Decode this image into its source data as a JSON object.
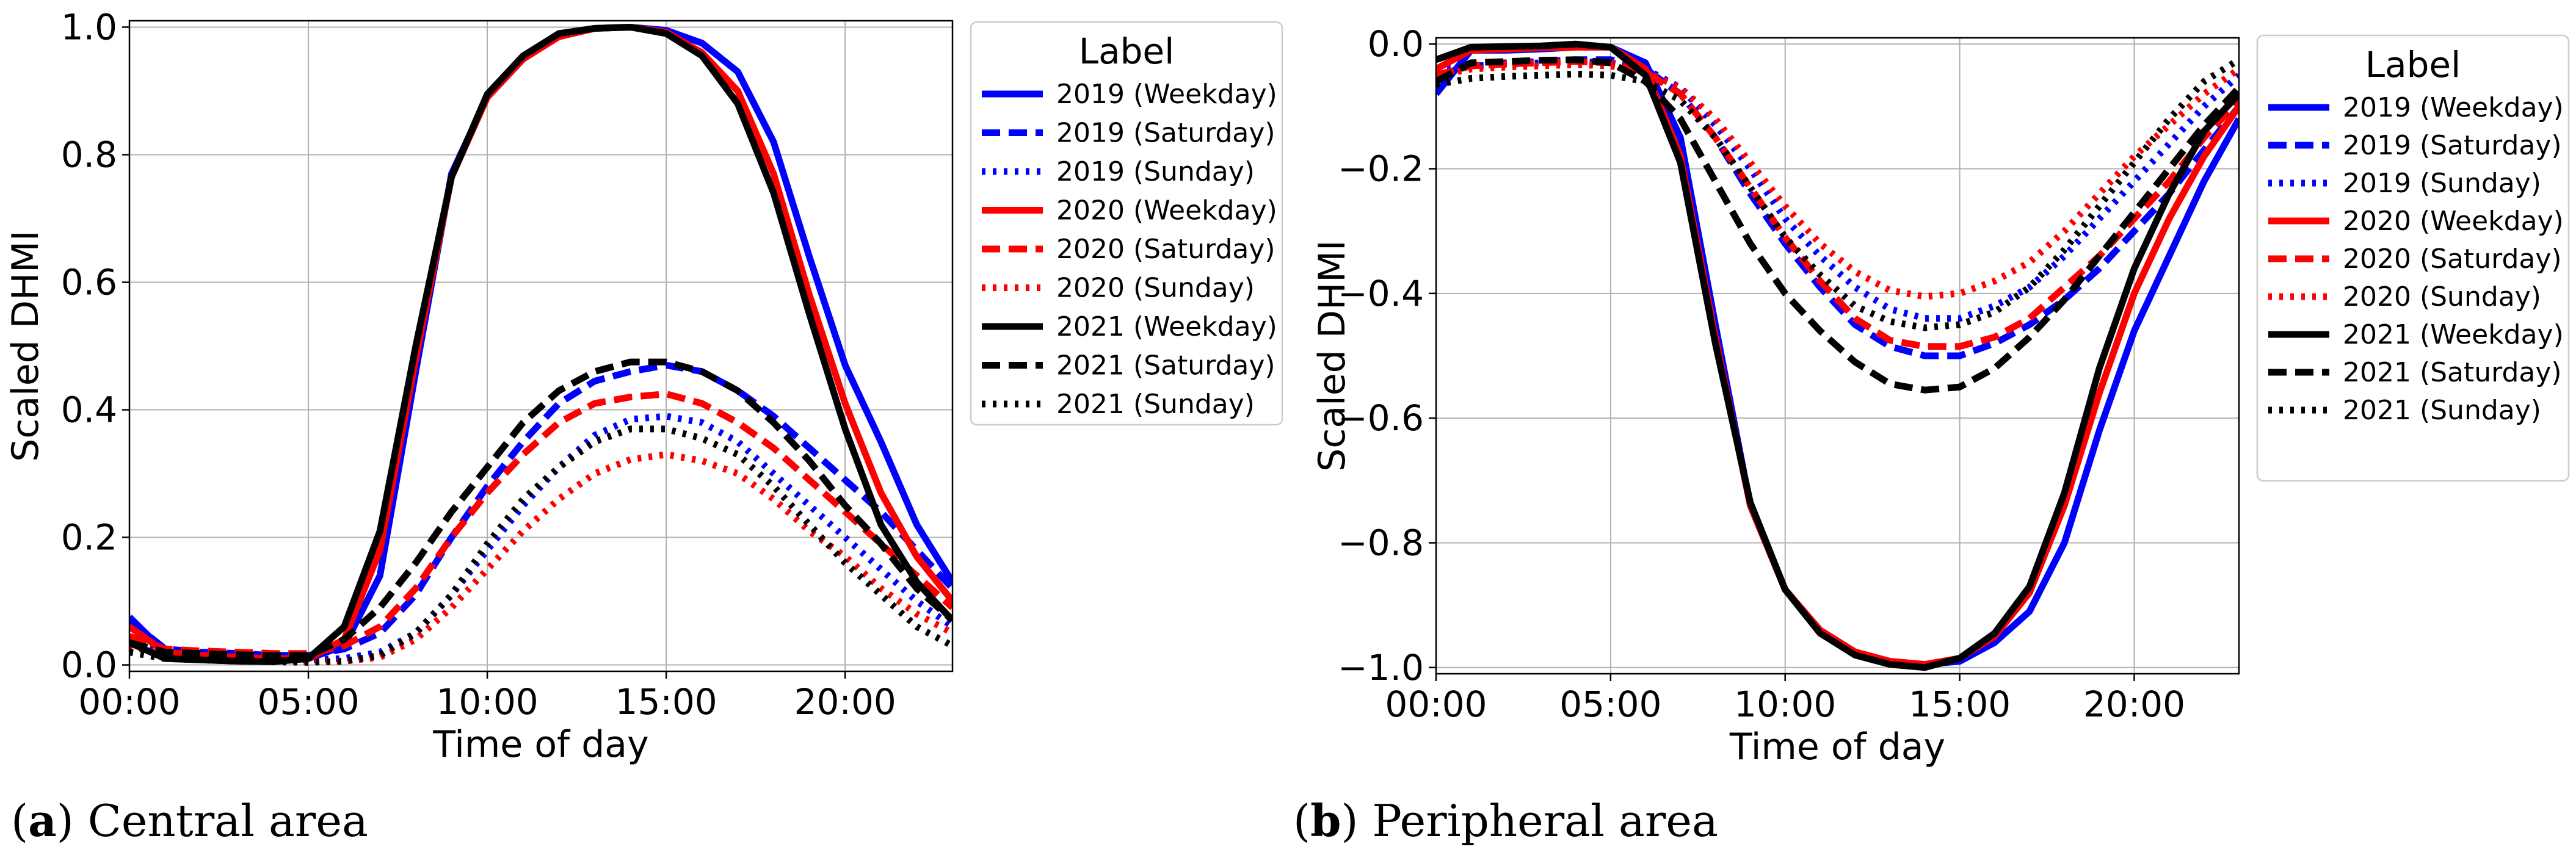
{
  "chart_data": [
    {
      "type": "line",
      "caption": {
        "letter": "a",
        "text": "Central area"
      },
      "xlabel": "Time of day",
      "ylabel": "Scaled DHMI",
      "xlim": [
        0,
        23
      ],
      "ylim": [
        -0.01,
        1.01
      ],
      "xticks": [
        {
          "value": 0,
          "label": "00:00"
        },
        {
          "value": 5,
          "label": "05:00"
        },
        {
          "value": 10,
          "label": "10:00"
        },
        {
          "value": 15,
          "label": "15:00"
        },
        {
          "value": 20,
          "label": "20:00"
        }
      ],
      "yticks": [
        {
          "value": 0.0,
          "label": "0.0"
        },
        {
          "value": 0.2,
          "label": "0.2"
        },
        {
          "value": 0.4,
          "label": "0.4"
        },
        {
          "value": 0.6,
          "label": "0.6"
        },
        {
          "value": 0.8,
          "label": "0.8"
        },
        {
          "value": 1.0,
          "label": "1.0"
        }
      ],
      "grid": true,
      "legend": {
        "title": "Label",
        "position": "outside right"
      },
      "x": [
        0,
        1,
        2,
        3,
        4,
        5,
        6,
        7,
        8,
        9,
        10,
        11,
        12,
        13,
        14,
        15,
        16,
        17,
        18,
        19,
        20,
        21,
        22,
        23
      ],
      "series": [
        {
          "name": "2019 (Weekday)",
          "color": "#0000ff",
          "style": "solid",
          "values": [
            0.075,
            0.02,
            0.015,
            0.012,
            0.01,
            0.01,
            0.03,
            0.14,
            0.46,
            0.77,
            0.89,
            0.95,
            0.985,
            0.998,
            1.0,
            0.995,
            0.975,
            0.93,
            0.82,
            0.64,
            0.47,
            0.35,
            0.22,
            0.13
          ]
        },
        {
          "name": "2019 (Saturday)",
          "color": "#0000ff",
          "style": "dashed",
          "values": [
            0.07,
            0.025,
            0.02,
            0.018,
            0.015,
            0.015,
            0.025,
            0.05,
            0.11,
            0.2,
            0.28,
            0.35,
            0.41,
            0.445,
            0.46,
            0.47,
            0.46,
            0.43,
            0.39,
            0.34,
            0.29,
            0.24,
            0.18,
            0.12
          ]
        },
        {
          "name": "2019 (Sunday)",
          "color": "#0000ff",
          "style": "dotted",
          "values": [
            0.04,
            0.02,
            0.015,
            0.012,
            0.01,
            0.008,
            0.01,
            0.02,
            0.05,
            0.11,
            0.18,
            0.25,
            0.31,
            0.36,
            0.385,
            0.39,
            0.38,
            0.35,
            0.3,
            0.25,
            0.2,
            0.15,
            0.1,
            0.06
          ]
        },
        {
          "name": "2020 (Weekday)",
          "color": "#ff0000",
          "style": "solid",
          "values": [
            0.06,
            0.02,
            0.015,
            0.012,
            0.01,
            0.01,
            0.04,
            0.18,
            0.48,
            0.765,
            0.89,
            0.95,
            0.985,
            0.998,
            1.0,
            0.992,
            0.96,
            0.9,
            0.77,
            0.58,
            0.41,
            0.27,
            0.17,
            0.1
          ]
        },
        {
          "name": "2020 (Saturday)",
          "color": "#ff0000",
          "style": "dashed",
          "values": [
            0.045,
            0.025,
            0.022,
            0.02,
            0.018,
            0.018,
            0.03,
            0.06,
            0.12,
            0.2,
            0.27,
            0.33,
            0.38,
            0.41,
            0.42,
            0.425,
            0.41,
            0.38,
            0.34,
            0.29,
            0.24,
            0.19,
            0.14,
            0.09
          ]
        },
        {
          "name": "2020 (Sunday)",
          "color": "#ff0000",
          "style": "dotted",
          "values": [
            0.03,
            0.015,
            0.012,
            0.01,
            0.008,
            0.005,
            0.006,
            0.012,
            0.04,
            0.09,
            0.15,
            0.21,
            0.26,
            0.3,
            0.322,
            0.33,
            0.32,
            0.3,
            0.26,
            0.21,
            0.17,
            0.12,
            0.08,
            0.05
          ]
        },
        {
          "name": "2021 (Weekday)",
          "color": "#000000",
          "style": "solid",
          "values": [
            0.035,
            0.01,
            0.008,
            0.006,
            0.005,
            0.01,
            0.06,
            0.21,
            0.5,
            0.765,
            0.895,
            0.955,
            0.99,
            0.998,
            1.0,
            0.99,
            0.955,
            0.88,
            0.74,
            0.55,
            0.37,
            0.22,
            0.13,
            0.07
          ]
        },
        {
          "name": "2021 (Saturday)",
          "color": "#000000",
          "style": "dashed",
          "values": [
            0.035,
            0.02,
            0.018,
            0.016,
            0.015,
            0.015,
            0.04,
            0.09,
            0.16,
            0.24,
            0.31,
            0.38,
            0.43,
            0.46,
            0.475,
            0.475,
            0.46,
            0.43,
            0.38,
            0.32,
            0.25,
            0.19,
            0.12,
            0.07
          ]
        },
        {
          "name": "2021 (Sunday)",
          "color": "#000000",
          "style": "dotted",
          "values": [
            0.02,
            0.01,
            0.008,
            0.006,
            0.005,
            0.004,
            0.006,
            0.015,
            0.05,
            0.11,
            0.19,
            0.26,
            0.31,
            0.35,
            0.37,
            0.37,
            0.355,
            0.33,
            0.28,
            0.22,
            0.16,
            0.11,
            0.06,
            0.03
          ]
        }
      ]
    },
    {
      "type": "line",
      "caption": {
        "letter": "b",
        "text": "Peripheral area"
      },
      "xlabel": "Time of day",
      "ylabel": "Scaled DHMI",
      "xlim": [
        0,
        23
      ],
      "ylim": [
        -1.01,
        0.01
      ],
      "xticks": [
        {
          "value": 0,
          "label": "00:00"
        },
        {
          "value": 5,
          "label": "05:00"
        },
        {
          "value": 10,
          "label": "10:00"
        },
        {
          "value": 15,
          "label": "15:00"
        },
        {
          "value": 20,
          "label": "20:00"
        }
      ],
      "yticks": [
        {
          "value": 0.0,
          "label": "0.0"
        },
        {
          "value": -0.2,
          "label": "−0.2"
        },
        {
          "value": -0.4,
          "label": "−0.4"
        },
        {
          "value": -0.6,
          "label": "−0.6"
        },
        {
          "value": -0.8,
          "label": "−0.8"
        },
        {
          "value": -1.0,
          "label": "−1.0"
        }
      ],
      "grid": true,
      "legend": {
        "title": "Label",
        "position": "outside right"
      },
      "x": [
        0,
        1,
        2,
        3,
        4,
        5,
        6,
        7,
        8,
        9,
        10,
        11,
        12,
        13,
        14,
        15,
        16,
        17,
        18,
        19,
        20,
        21,
        22,
        23
      ],
      "series": [
        {
          "name": "2019 (Weekday)",
          "color": "#0000ff",
          "style": "solid",
          "values": [
            -0.08,
            -0.01,
            -0.01,
            -0.008,
            -0.005,
            -0.005,
            -0.03,
            -0.15,
            -0.45,
            -0.74,
            -0.875,
            -0.94,
            -0.975,
            -0.99,
            -0.995,
            -0.99,
            -0.96,
            -0.91,
            -0.8,
            -0.62,
            -0.46,
            -0.34,
            -0.22,
            -0.12
          ]
        },
        {
          "name": "2019 (Saturday)",
          "color": "#0000ff",
          "style": "dashed",
          "values": [
            -0.05,
            -0.035,
            -0.03,
            -0.028,
            -0.025,
            -0.025,
            -0.04,
            -0.08,
            -0.15,
            -0.24,
            -0.32,
            -0.39,
            -0.45,
            -0.485,
            -0.5,
            -0.5,
            -0.48,
            -0.45,
            -0.41,
            -0.36,
            -0.3,
            -0.24,
            -0.17,
            -0.1
          ]
        },
        {
          "name": "2019 (Sunday)",
          "color": "#0000ff",
          "style": "dotted",
          "values": [
            -0.04,
            -0.035,
            -0.033,
            -0.03,
            -0.028,
            -0.03,
            -0.04,
            -0.07,
            -0.13,
            -0.2,
            -0.28,
            -0.34,
            -0.39,
            -0.425,
            -0.44,
            -0.44,
            -0.42,
            -0.39,
            -0.34,
            -0.28,
            -0.22,
            -0.16,
            -0.1,
            -0.05
          ]
        },
        {
          "name": "2020 (Weekday)",
          "color": "#ff0000",
          "style": "solid",
          "values": [
            -0.04,
            -0.01,
            -0.008,
            -0.006,
            -0.005,
            -0.005,
            -0.04,
            -0.18,
            -0.47,
            -0.74,
            -0.875,
            -0.94,
            -0.975,
            -0.99,
            -0.995,
            -0.985,
            -0.95,
            -0.88,
            -0.74,
            -0.56,
            -0.4,
            -0.28,
            -0.18,
            -0.1
          ]
        },
        {
          "name": "2020 (Saturday)",
          "color": "#ff0000",
          "style": "dashed",
          "values": [
            -0.05,
            -0.035,
            -0.032,
            -0.03,
            -0.028,
            -0.03,
            -0.045,
            -0.08,
            -0.15,
            -0.23,
            -0.31,
            -0.38,
            -0.44,
            -0.475,
            -0.485,
            -0.485,
            -0.47,
            -0.44,
            -0.39,
            -0.34,
            -0.28,
            -0.22,
            -0.15,
            -0.09
          ]
        },
        {
          "name": "2020 (Sunday)",
          "color": "#ff0000",
          "style": "dotted",
          "values": [
            -0.05,
            -0.04,
            -0.037,
            -0.035,
            -0.033,
            -0.035,
            -0.045,
            -0.07,
            -0.12,
            -0.19,
            -0.26,
            -0.32,
            -0.365,
            -0.395,
            -0.405,
            -0.4,
            -0.38,
            -0.35,
            -0.3,
            -0.24,
            -0.18,
            -0.13,
            -0.08,
            -0.04
          ]
        },
        {
          "name": "2021 (Weekday)",
          "color": "#000000",
          "style": "solid",
          "values": [
            -0.025,
            -0.005,
            -0.004,
            -0.003,
            0.0,
            -0.005,
            -0.05,
            -0.19,
            -0.48,
            -0.735,
            -0.875,
            -0.945,
            -0.98,
            -0.995,
            -1.0,
            -0.985,
            -0.945,
            -0.87,
            -0.72,
            -0.52,
            -0.36,
            -0.24,
            -0.14,
            -0.08
          ]
        },
        {
          "name": "2021 (Saturday)",
          "color": "#000000",
          "style": "dashed",
          "values": [
            -0.06,
            -0.03,
            -0.028,
            -0.026,
            -0.025,
            -0.03,
            -0.06,
            -0.12,
            -0.22,
            -0.32,
            -0.4,
            -0.46,
            -0.51,
            -0.545,
            -0.555,
            -0.55,
            -0.52,
            -0.47,
            -0.41,
            -0.34,
            -0.27,
            -0.2,
            -0.13,
            -0.07
          ]
        },
        {
          "name": "2021 (Sunday)",
          "color": "#000000",
          "style": "dotted",
          "values": [
            -0.065,
            -0.055,
            -0.052,
            -0.05,
            -0.048,
            -0.05,
            -0.06,
            -0.09,
            -0.15,
            -0.23,
            -0.31,
            -0.37,
            -0.42,
            -0.445,
            -0.455,
            -0.45,
            -0.43,
            -0.39,
            -0.33,
            -0.26,
            -0.19,
            -0.12,
            -0.06,
            -0.025
          ]
        }
      ]
    }
  ]
}
